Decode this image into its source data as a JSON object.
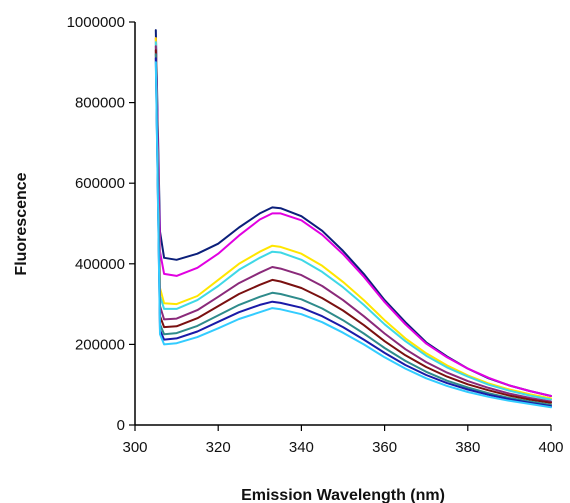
{
  "chart_data": {
    "type": "line",
    "title": "",
    "xlabel": "Emission Wavelength (nm)",
    "ylabel": "Fluorescence",
    "xlim": [
      300,
      400
    ],
    "ylim": [
      0,
      1000000
    ],
    "x_ticks": [
      "300",
      "320",
      "340",
      "360",
      "380",
      "400"
    ],
    "y_ticks": [
      "0",
      "200000",
      "400000",
      "600000",
      "800000",
      "1000000"
    ],
    "grid": false,
    "legend": "none",
    "x": [
      305,
      306,
      307,
      310,
      315,
      320,
      325,
      330,
      333,
      335,
      340,
      345,
      350,
      355,
      360,
      365,
      370,
      375,
      380,
      385,
      390,
      395,
      400
    ],
    "series": [
      {
        "color": "#0b1f7a",
        "values": [
          980000,
          480000,
          415000,
          410000,
          425000,
          450000,
          490000,
          525000,
          540000,
          538000,
          518000,
          482000,
          432000,
          375000,
          310000,
          255000,
          205000,
          170000,
          140000,
          116000,
          98000,
          84000,
          72000
        ]
      },
      {
        "color": "#e100e1",
        "values": [
          960000,
          430000,
          375000,
          370000,
          390000,
          425000,
          470000,
          510000,
          525000,
          525000,
          508000,
          472000,
          424000,
          368000,
          305000,
          250000,
          202000,
          168000,
          140000,
          117000,
          98000,
          84000,
          72000
        ]
      },
      {
        "color": "#ffe600",
        "values": [
          960000,
          340000,
          302000,
          300000,
          320000,
          360000,
          400000,
          430000,
          445000,
          442000,
          425000,
          395000,
          355000,
          310000,
          260000,
          215000,
          178000,
          148000,
          123000,
          103000,
          88000,
          76000,
          66000
        ]
      },
      {
        "color": "#3fd8e6",
        "values": [
          950000,
          320000,
          288000,
          288000,
          310000,
          345000,
          385000,
          415000,
          430000,
          428000,
          410000,
          380000,
          342000,
          298000,
          250000,
          208000,
          172000,
          143000,
          120000,
          100000,
          85000,
          73000,
          63000
        ]
      },
      {
        "color": "#8a2a7a",
        "values": [
          940000,
          295000,
          262000,
          264000,
          285000,
          318000,
          352000,
          378000,
          392000,
          388000,
          372000,
          345000,
          310000,
          270000,
          227000,
          188000,
          156000,
          130000,
          109000,
          92000,
          78000,
          67000,
          58000
        ]
      },
      {
        "color": "#7a1010",
        "values": [
          930000,
          270000,
          243000,
          245000,
          265000,
          295000,
          325000,
          348000,
          360000,
          356000,
          340000,
          315000,
          284000,
          248000,
          208000,
          173000,
          144000,
          120000,
          101000,
          86000,
          73000,
          63000,
          55000
        ]
      },
      {
        "color": "#2e8b8b",
        "values": [
          920000,
          250000,
          225000,
          228000,
          246000,
          272000,
          298000,
          318000,
          328000,
          325000,
          312000,
          289000,
          260000,
          227000,
          191000,
          159000,
          132000,
          110000,
          93000,
          79000,
          67000,
          58000,
          50000
        ]
      },
      {
        "color": "#1a1aa8",
        "values": [
          910000,
          235000,
          212000,
          215000,
          232000,
          256000,
          280000,
          298000,
          306000,
          303000,
          291000,
          270000,
          243000,
          212000,
          179000,
          149000,
          124000,
          104000,
          88000,
          75000,
          64000,
          55000,
          47000
        ]
      },
      {
        "color": "#33ccff",
        "values": [
          900000,
          225000,
          200000,
          203000,
          218000,
          240000,
          263000,
          280000,
          290000,
          287000,
          275000,
          255000,
          229000,
          200000,
          168000,
          140000,
          116000,
          97000,
          82000,
          70000,
          60000,
          52000,
          44000
        ]
      }
    ]
  }
}
